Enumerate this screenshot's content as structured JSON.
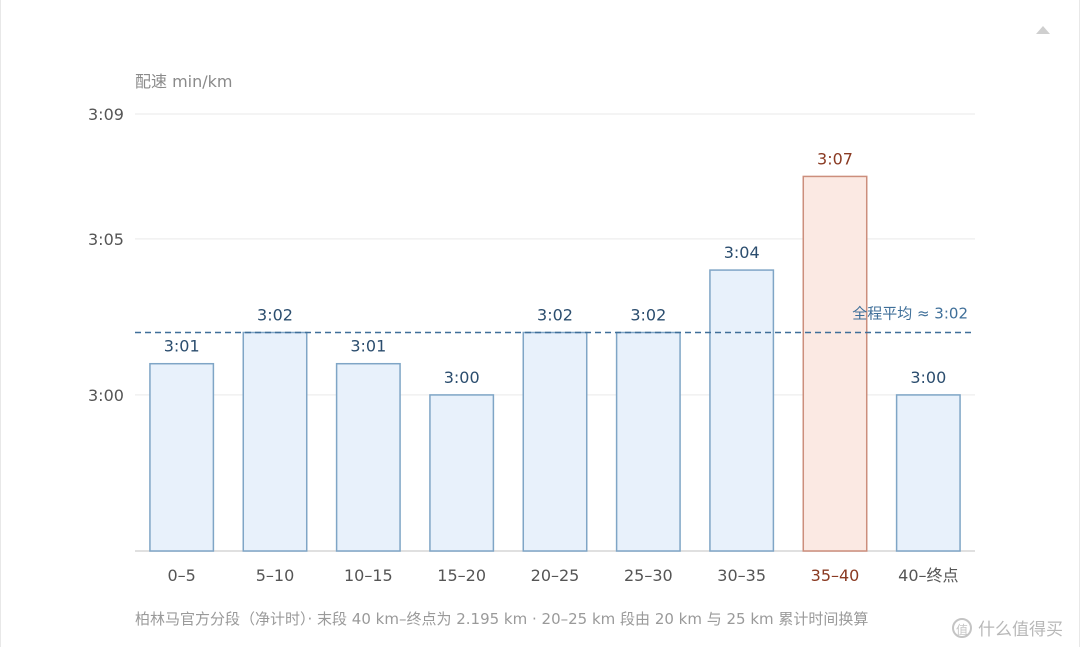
{
  "chart_data": {
    "type": "bar",
    "ylabel": "配速 min/km",
    "y_ticks": [
      "3:00",
      "3:05",
      "3:09"
    ],
    "y_tick_values": [
      180,
      185,
      189
    ],
    "ylim": [
      175,
      189
    ],
    "grid": true,
    "categories": [
      "0–5",
      "5–10",
      "10–15",
      "15–20",
      "20–25",
      "25–30",
      "30–35",
      "35–40",
      "40–终点"
    ],
    "values": [
      181,
      182,
      181,
      180,
      182,
      182,
      184,
      187,
      180
    ],
    "value_labels": [
      "3:01",
      "3:02",
      "3:01",
      "3:00",
      "3:02",
      "3:02",
      "3:04",
      "3:07",
      "3:00"
    ],
    "highlight_index": 7,
    "average": {
      "value": 182,
      "label": "全程平均 ≈ 3:02"
    },
    "colors": {
      "bar_fill": "#e8f1fb",
      "bar_stroke": "#7fa5c6",
      "bar_label": "#2b4d6e",
      "highlight_fill": "#fbe9e3",
      "highlight_stroke": "#cc8e7c",
      "highlight_label": "#8a3a22",
      "average_line": "#3f6f99",
      "grid": "#e9e9e9",
      "axis": "#d6d6d6",
      "tick": "#555555"
    }
  },
  "footnote": "柏林马官方分段（净计时）· 末段 40 km–终点为 2.195 km · 20–25 km 段由 20 km 与 25 km 累计时间换算",
  "watermark": {
    "logo": "值",
    "text": "什么值得买"
  }
}
